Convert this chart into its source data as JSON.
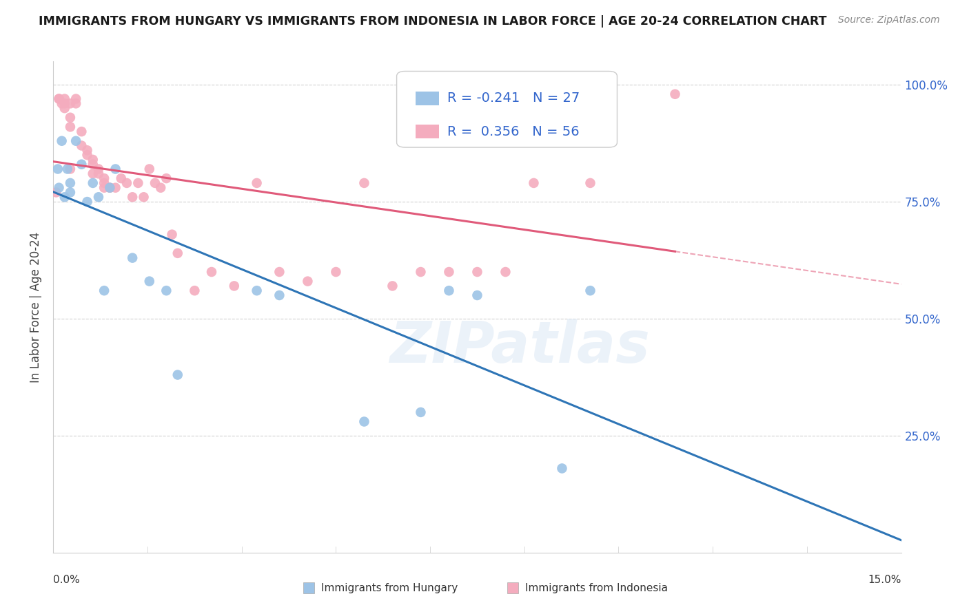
{
  "title": "IMMIGRANTS FROM HUNGARY VS IMMIGRANTS FROM INDONESIA IN LABOR FORCE | AGE 20-24 CORRELATION CHART",
  "source": "Source: ZipAtlas.com",
  "ylabel": "In Labor Force | Age 20-24",
  "yticks": [
    0.0,
    0.25,
    0.5,
    0.75,
    1.0
  ],
  "ytick_labels": [
    "",
    "25.0%",
    "50.0%",
    "75.0%",
    "100.0%"
  ],
  "xlim": [
    0.0,
    0.15
  ],
  "ylim": [
    0.0,
    1.05
  ],
  "watermark": "ZIPatlas",
  "legend_r_hungary": "-0.241",
  "legend_n_hungary": "27",
  "legend_r_indonesia": "0.356",
  "legend_n_indonesia": "56",
  "hungary_color": "#9DC3E6",
  "indonesia_color": "#F4ACBE",
  "hungary_line_color": "#2E75B6",
  "indonesia_line_color": "#E05A7A",
  "hungary_x": [
    0.0008,
    0.001,
    0.0015,
    0.002,
    0.0025,
    0.003,
    0.003,
    0.004,
    0.005,
    0.006,
    0.007,
    0.008,
    0.009,
    0.01,
    0.011,
    0.014,
    0.017,
    0.02,
    0.022,
    0.036,
    0.04,
    0.055,
    0.065,
    0.07,
    0.075,
    0.09,
    0.095
  ],
  "hungary_y": [
    0.82,
    0.78,
    0.88,
    0.76,
    0.82,
    0.79,
    0.77,
    0.88,
    0.83,
    0.75,
    0.79,
    0.76,
    0.56,
    0.78,
    0.82,
    0.63,
    0.58,
    0.56,
    0.38,
    0.56,
    0.55,
    0.28,
    0.3,
    0.56,
    0.55,
    0.18,
    0.56
  ],
  "indonesia_x": [
    0.0005,
    0.001,
    0.001,
    0.0015,
    0.002,
    0.002,
    0.002,
    0.003,
    0.003,
    0.003,
    0.003,
    0.004,
    0.004,
    0.005,
    0.005,
    0.006,
    0.006,
    0.007,
    0.007,
    0.007,
    0.008,
    0.008,
    0.009,
    0.009,
    0.009,
    0.01,
    0.01,
    0.011,
    0.012,
    0.013,
    0.014,
    0.015,
    0.016,
    0.017,
    0.018,
    0.019,
    0.02,
    0.021,
    0.022,
    0.025,
    0.028,
    0.032,
    0.036,
    0.04,
    0.045,
    0.05,
    0.055,
    0.06,
    0.065,
    0.07,
    0.075,
    0.08,
    0.085,
    0.09,
    0.095,
    0.11
  ],
  "indonesia_y": [
    0.77,
    0.97,
    0.97,
    0.96,
    0.97,
    0.96,
    0.95,
    0.96,
    0.93,
    0.91,
    0.82,
    0.97,
    0.96,
    0.9,
    0.87,
    0.86,
    0.85,
    0.84,
    0.83,
    0.81,
    0.82,
    0.81,
    0.8,
    0.79,
    0.78,
    0.78,
    0.78,
    0.78,
    0.8,
    0.79,
    0.76,
    0.79,
    0.76,
    0.82,
    0.79,
    0.78,
    0.8,
    0.68,
    0.64,
    0.56,
    0.6,
    0.57,
    0.79,
    0.6,
    0.58,
    0.6,
    0.79,
    0.57,
    0.6,
    0.6,
    0.6,
    0.6,
    0.79,
    0.98,
    0.79,
    0.98
  ],
  "bg_color": "#ffffff",
  "grid_color": "#d0d0d0",
  "spine_color": "#cccccc",
  "right_label_color": "#3366CC",
  "title_color": "#1a1a1a",
  "source_color": "#888888",
  "axis_label_color": "#444444"
}
